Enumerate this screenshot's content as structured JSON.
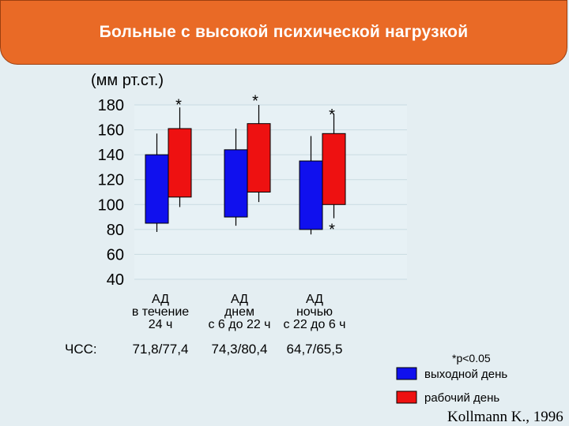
{
  "title": "Больные с высокой психической нагрузкой",
  "chart_data": {
    "type": "candlestick",
    "unit_label": "(мм рт.ст.)",
    "y_ticks": [
      180,
      160,
      140,
      120,
      100,
      80,
      60,
      40
    ],
    "ylim": [
      40,
      180
    ],
    "grid": true,
    "categories": [
      {
        "lines": [
          "АД",
          "в течение",
          "24 ч"
        ],
        "hr": "71,8/77,4"
      },
      {
        "lines": [
          "АД",
          "днем",
          "с 6 до 22 ч"
        ],
        "hr": "74,3/80,4"
      },
      {
        "lines": [
          "АД",
          "ночью",
          "с 22 до 6 ч"
        ],
        "hr": "64,7/65,5"
      }
    ],
    "series": [
      {
        "name": "выходной день",
        "color": "#1010ee",
        "boxes": [
          {
            "low": 78,
            "bottom": 85,
            "top": 140,
            "high": 157
          },
          {
            "low": 83,
            "bottom": 90,
            "top": 144,
            "high": 161
          },
          {
            "low": 76,
            "bottom": 80,
            "top": 135,
            "high": 155
          }
        ]
      },
      {
        "name": "рабочий день",
        "color": "#ee1111",
        "boxes": [
          {
            "low": 98,
            "bottom": 106,
            "top": 161,
            "high": 178
          },
          {
            "low": 102,
            "bottom": 110,
            "top": 165,
            "high": 180
          },
          {
            "low": 89,
            "bottom": 100,
            "top": 157,
            "high": 173
          }
        ]
      }
    ],
    "annotations": [
      {
        "text": "*",
        "x": 0,
        "y": 181
      },
      {
        "text": "*",
        "x": 1,
        "y": 184
      },
      {
        "text": "*",
        "x": 2,
        "y": 173
      },
      {
        "text": "*",
        "x": 2,
        "y": 81
      }
    ],
    "hr_label": "ЧСС:",
    "significance": "*p<0.05",
    "legend_position": "bottom-right",
    "citation": "Kollmann K., 1996"
  }
}
